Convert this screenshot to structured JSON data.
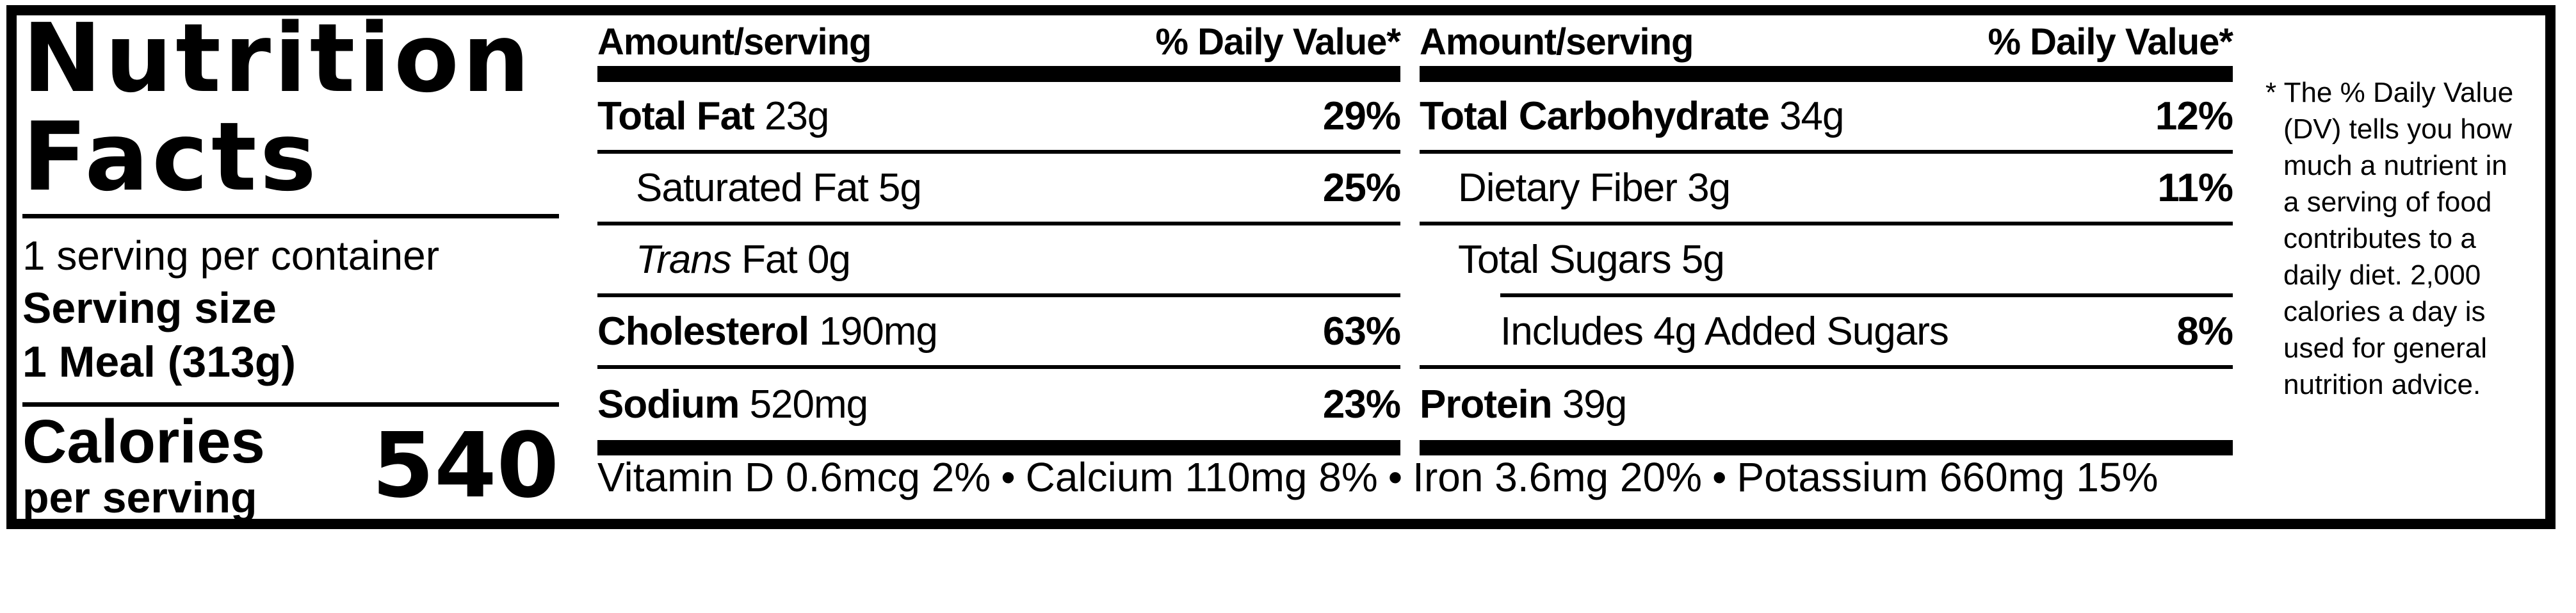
{
  "title": {
    "line1": "Nutrition",
    "line2": "Facts"
  },
  "serving": {
    "per_container": "1 serving per container",
    "size_label": "Serving size",
    "size_value": "1 Meal (313g)"
  },
  "calories": {
    "label": "Calories",
    "sublabel": "per serving",
    "value": "540"
  },
  "columns": [
    {
      "header": {
        "amount": "Amount/serving",
        "dv": "% Daily Value*"
      },
      "rows": [
        {
          "name": "Total Fat",
          "amount": "23g",
          "dv": "29%"
        },
        {
          "name": "Saturated Fat",
          "amount": "5g",
          "dv": "25%"
        },
        {
          "name_italic": "Trans",
          "name": "Fat",
          "amount": "0g",
          "dv": ""
        },
        {
          "name": "Cholesterol",
          "amount": "190mg",
          "dv": "63%"
        },
        {
          "name": "Sodium",
          "amount": "520mg",
          "dv": "23%"
        }
      ]
    },
    {
      "header": {
        "amount": "Amount/serving",
        "dv": "% Daily Value*"
      },
      "rows": [
        {
          "name": "Total Carbohydrate",
          "amount": "34g",
          "dv": "12%"
        },
        {
          "name": "Dietary Fiber",
          "amount": "3g",
          "dv": "11%"
        },
        {
          "name": "Total Sugars",
          "amount": "5g",
          "dv": ""
        },
        {
          "name": "Includes 4g Added Sugars",
          "amount": "",
          "dv": "8%"
        },
        {
          "name": "Protein",
          "amount": "39g",
          "dv": ""
        }
      ]
    }
  ],
  "micronutrients": {
    "separator": "•",
    "items": [
      "Vitamin D 0.6mcg 2%",
      "Calcium 110mg 8%",
      "Iron 3.6mg 20%",
      "Potassium 660mg 15%"
    ]
  },
  "footnote": {
    "marker": "*",
    "text": "The % Daily Value (DV) tells you how much a nutrient in a serving of food contributes to a daily diet. 2,000 calories a day is used for general nutrition advice."
  },
  "colors": {
    "ink": "#000000",
    "background": "#ffffff"
  }
}
